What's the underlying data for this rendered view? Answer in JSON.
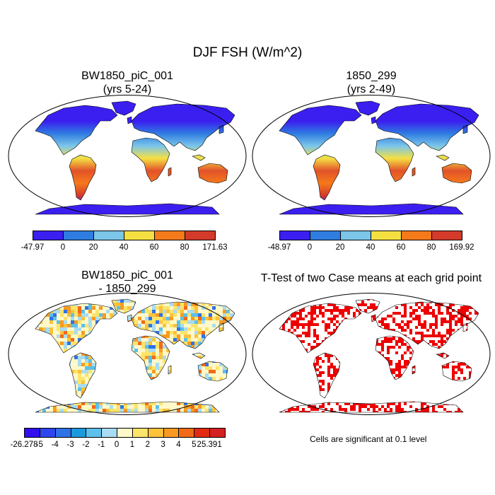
{
  "figure": {
    "title": "DJF FSH (W/m^2)"
  },
  "panels": {
    "case1": {
      "title_line1": "BW1850_piC_001",
      "title_line2": "(yrs 5-24)"
    },
    "case2": {
      "title_line1": "1850_299",
      "title_line2": "(yrs 2-49)"
    },
    "diff": {
      "title_line1": "BW1850_piC_001",
      "title_line2": "- 1850_299"
    },
    "ttest": {
      "title": "T-Test of two Case means at each grid point",
      "note": "Cells are significant at 0.1 level"
    }
  },
  "colorbars": {
    "case1": {
      "labels": [
        "-47.97",
        "0",
        "20",
        "40",
        "60",
        "80",
        "171.63"
      ],
      "colors": [
        "#3a1ff0",
        "#2f7de0",
        "#7cc6ea",
        "#f5e042",
        "#f57a1a",
        "#d43a2a"
      ]
    },
    "case2": {
      "labels": [
        "-48.97",
        "0",
        "20",
        "40",
        "60",
        "80",
        "169.92"
      ],
      "colors": [
        "#3a1ff0",
        "#2f7de0",
        "#7cc6ea",
        "#f5e042",
        "#f57a1a",
        "#d43a2a"
      ]
    },
    "diff": {
      "labels": [
        "-26.278",
        "-5",
        "-4",
        "-3",
        "-2",
        "-1",
        "0",
        "1",
        "2",
        "3",
        "4",
        "5",
        "25.391"
      ],
      "colors": [
        "#3010f0",
        "#2e46ee",
        "#2f72e6",
        "#1a9adc",
        "#5cc0ea",
        "#a8dcf2",
        "#fff8c8",
        "#fce46a",
        "#fcc23a",
        "#f89a22",
        "#f26a16",
        "#e22a12",
        "#d42020"
      ]
    }
  },
  "colors": {
    "land_mean": "#7cc6ea",
    "polar": "#3a1ff0",
    "significant": "#ee0000"
  }
}
